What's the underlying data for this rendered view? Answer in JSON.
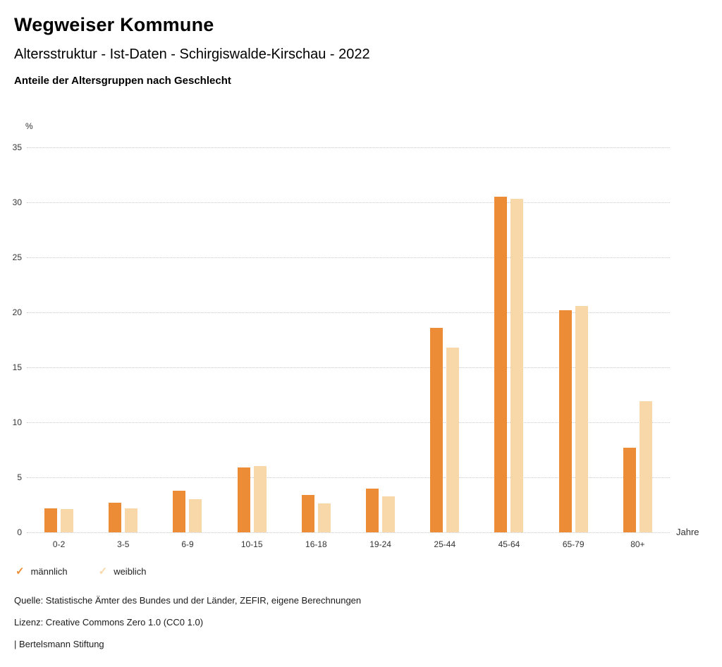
{
  "header": {
    "title": "Wegweiser Kommune",
    "subtitle": "Altersstruktur - Ist-Daten - Schirgiswalde-Kirschau - 2022",
    "subheading": "Anteile der Altersgruppen nach Geschlecht"
  },
  "chart_data": {
    "type": "bar",
    "title": "Anteile der Altersgruppen nach Geschlecht",
    "categories": [
      "0-2",
      "3-5",
      "6-9",
      "10-15",
      "16-18",
      "19-24",
      "25-44",
      "45-64",
      "65-79",
      "80+"
    ],
    "series": [
      {
        "name": "männlich",
        "color": "#ed8c37",
        "values": [
          2.2,
          2.7,
          3.8,
          5.9,
          3.4,
          4.0,
          18.6,
          30.5,
          20.2,
          7.7
        ]
      },
      {
        "name": "weiblich",
        "color": "#f8d8a8",
        "values": [
          2.1,
          2.2,
          3.0,
          6.0,
          2.6,
          3.3,
          16.8,
          30.3,
          20.6,
          11.9
        ]
      }
    ],
    "ylabel": "%",
    "xlabel": "Jahre",
    "ylim": [
      0,
      35
    ],
    "yticks": [
      0,
      5,
      10,
      15,
      20,
      25,
      30,
      35
    ],
    "grid": "dotted horizontal",
    "legend_position": "bottom-left",
    "legend_marker": "✓"
  },
  "footer": {
    "source": "Quelle: Statistische Ämter des Bundes und der Länder, ZEFIR, eigene Berechnungen",
    "license": "Lizenz: Creative Commons Zero 1.0 (CC0 1.0)",
    "attribution": "| Bertelsmann Stiftung"
  }
}
